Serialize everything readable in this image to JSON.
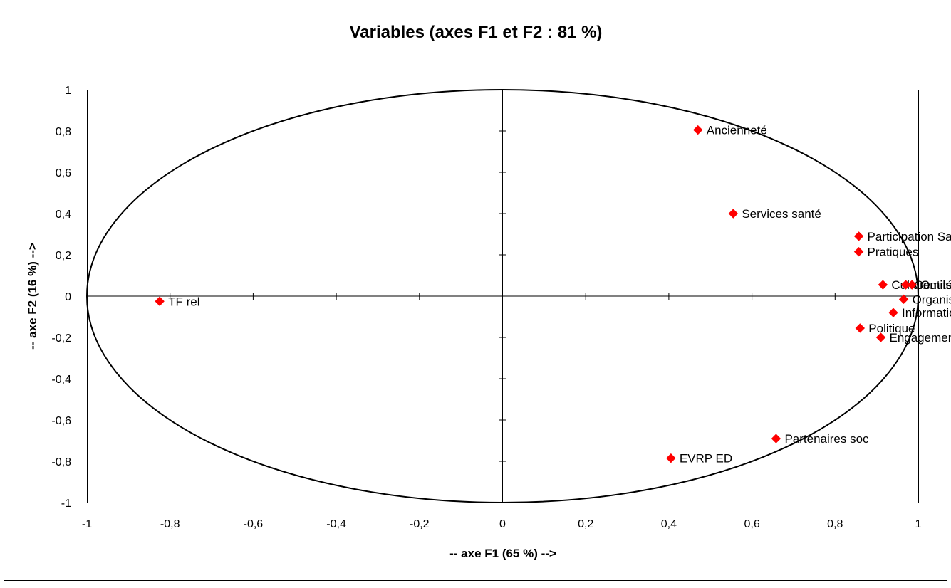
{
  "chart_data": {
    "type": "scatter",
    "title": "Variables (axes F1 et F2 : 81 %)",
    "xlabel": "-- axe F1 (65 %) -->",
    "ylabel": "-- axe F2 (16 %) -->",
    "xlim": [
      -1,
      1
    ],
    "ylim": [
      -1,
      1
    ],
    "grid": false,
    "legend": "none",
    "x_ticks": [
      -1,
      -0.8,
      -0.6,
      -0.4,
      -0.2,
      0,
      0.2,
      0.4,
      0.6,
      0.8,
      1
    ],
    "y_ticks": [
      -1,
      -0.8,
      -0.6,
      -0.4,
      -0.2,
      0,
      0.2,
      0.4,
      0.6,
      0.8,
      1
    ],
    "x_tick_labels": [
      "-1",
      "-0,8",
      "-0,6",
      "-0,4",
      "-0,2",
      "0",
      "0,2",
      "0,4",
      "0,6",
      "0,8",
      "1"
    ],
    "y_tick_labels": [
      "-1",
      "-0,8",
      "-0,6",
      "-0,4",
      "-0,2",
      "0",
      "0,2",
      "0,4",
      "0,6",
      "0,8",
      "1"
    ],
    "correlation_circle": true,
    "marker": "diamond",
    "marker_color": "#ff0000",
    "points": [
      {
        "label": "Ancienneté",
        "x": 0.47,
        "y": 0.805
      },
      {
        "label": "Services santé",
        "x": 0.555,
        "y": 0.4
      },
      {
        "label": "Participation Sal",
        "x": 0.857,
        "y": 0.29
      },
      {
        "label": "Pratiques",
        "x": 0.857,
        "y": 0.215
      },
      {
        "label": "Culture",
        "x": 0.915,
        "y": 0.055
      },
      {
        "label": "Comité",
        "x": 0.97,
        "y": 0.055
      },
      {
        "label": "Outils",
        "x": 0.985,
        "y": 0.055
      },
      {
        "label": "Organisation TP",
        "x": 0.965,
        "y": -0.015
      },
      {
        "label": "Information Com",
        "x": 0.94,
        "y": -0.08
      },
      {
        "label": "Politique",
        "x": 0.86,
        "y": -0.155
      },
      {
        "label": "Engagement",
        "x": 0.91,
        "y": -0.2
      },
      {
        "label": "TF rel",
        "x": -0.825,
        "y": -0.025
      },
      {
        "label": "Partenaires soc",
        "x": 0.658,
        "y": -0.69
      },
      {
        "label": "EVRP ED",
        "x": 0.405,
        "y": -0.785
      }
    ]
  }
}
